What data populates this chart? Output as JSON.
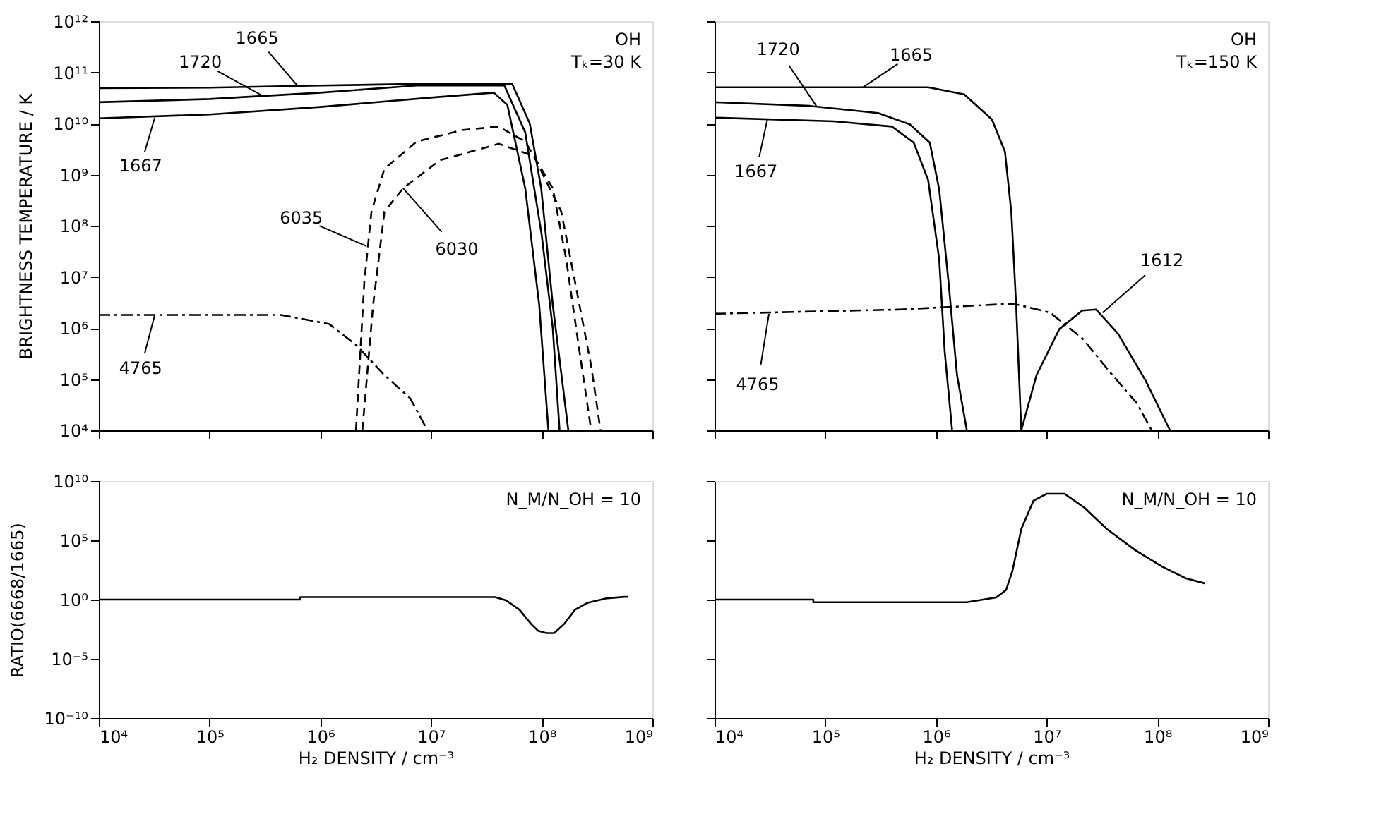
{
  "chart_data": [
    {
      "type": "line",
      "ylabel": "BRIGHTNESS TEMPERATURE / K",
      "log": "xy",
      "xlim": [
        10000.0,
        1000000000.0
      ],
      "ylim": [
        10000.0,
        1000000000000.0
      ],
      "xticks": [
        {
          "value": 10000.0,
          "label": null
        },
        {
          "value": 100000.0,
          "label": null
        },
        {
          "value": 1000000.0,
          "label": null
        },
        {
          "value": 10000000.0,
          "label": null
        },
        {
          "value": 100000000.0,
          "label": null
        },
        {
          "value": 1000000000.0,
          "label": null
        }
      ],
      "yticks": [
        {
          "value": 10000.0,
          "label": "10⁴"
        },
        {
          "value": 100000.0,
          "label": "10⁵"
        },
        {
          "value": 1000000.0,
          "label": "10⁶"
        },
        {
          "value": 10000000.0,
          "label": "10⁷"
        },
        {
          "value": 100000000.0,
          "label": "10⁸"
        },
        {
          "value": 1000000000.0,
          "label": "10⁹"
        },
        {
          "value": 10000000000.0,
          "label": "10¹⁰"
        },
        {
          "value": 100000000000.0,
          "label": "10¹¹"
        },
        {
          "value": 1000000000000.0,
          "label": "10¹²"
        }
      ],
      "tick_labels": "y",
      "grid": false,
      "series": [
        {
          "color": "#000000",
          "line_style": "solid",
          "x": [
            10000.0,
            100000.0,
            1000000.0,
            10000000.0,
            54000000.0,
            78000000.0,
            99000000.0,
            126000000.0,
            174000000.0
          ],
          "values": [
            49000000000.0,
            50000000000.0,
            55000000000.0,
            60000000000.0,
            60000000000.0,
            10000000000.0,
            540000000.0,
            2800000.0,
            10000.0
          ]
        },
        {
          "color": "#000000",
          "line_style": "solid",
          "x": [
            10000.0,
            100000.0,
            1000000.0,
            7400000.0,
            46000000.0,
            71000000.0,
            100000000.0,
            126000000.0,
            145000000.0
          ],
          "values": [
            26000000000.0,
            30000000000.0,
            40000000000.0,
            55000000000.0,
            55000000000.0,
            6700000000.0,
            66000000.0,
            980000.0,
            10000.0
          ]
        },
        {
          "color": "#000000",
          "line_style": "solid",
          "x": [
            10000.0,
            100000.0,
            1000000.0,
            10000000.0,
            37000000.0,
            49000000.0,
            71000000.0,
            95000000.0,
            115000000.0
          ],
          "values": [
            12600000000.0,
            15000000000.0,
            21000000000.0,
            32000000000.0,
            40000000000.0,
            23000000000.0,
            540000000.0,
            2800000.0,
            10000.0
          ]
        },
        {
          "color": "#000000",
          "line_style": "dashed",
          "x": [
            2100000.0,
            2500000.0,
            2900000.0,
            3800000.0,
            7400000.0,
            19000000.0,
            41000000.0,
            71000000.0,
            126000000.0,
            166000000.0,
            220000000.0,
            280000000.0
          ],
          "values": [
            10000.0,
            8000000.0,
            190000000.0,
            1300000000.0,
            4400000000.0,
            7400000000.0,
            8700000000.0,
            4400000000.0,
            540000000.0,
            23000000.0,
            340000.0,
            10000.0
          ]
        },
        {
          "color": "#000000",
          "line_style": "dashed",
          "x": [
            2400000.0,
            3000000.0,
            3800000.0,
            5600000.0,
            12000000.0,
            41000000.0,
            85000000.0,
            150000000.0,
            200000000.0,
            280000000.0,
            340000000.0
          ],
          "values": [
            10000.0,
            2800000.0,
            190000000.0,
            540000000.0,
            1900000000.0,
            4000000000.0,
            2300000000.0,
            190000000.0,
            8000000.0,
            180000.0,
            10000.0
          ]
        },
        {
          "color": "#000000",
          "line_style": "dashdot",
          "x": [
            10000.0,
            440000.0,
            1200000.0,
            2100000.0,
            3800000.0,
            6500000.0,
            9300000.0
          ],
          "values": [
            1800000.0,
            1800000.0,
            1200000.0,
            470000.0,
            120000.0,
            42000.0,
            10000.0
          ]
        }
      ],
      "annotations": [
        {
          "text": "1665",
          "x": 630000.0,
          "y": 53000000000.0
        },
        {
          "text": "1720",
          "x": 300000.0,
          "y": 35000000000.0
        },
        {
          "text": "1667",
          "x": 32000.0,
          "y": 13000000000.0
        },
        {
          "text": "6035",
          "x": 2600000.0,
          "y": 40000000.0
        },
        {
          "text": "6030",
          "x": 5600000.0,
          "y": 540000000.0
        },
        {
          "text": "4765",
          "x": 32000.0,
          "y": 1800000.0
        },
        "OH",
        "Tₖ=30 K"
      ]
    },
    {
      "type": "line",
      "log": "xy",
      "xlim": [
        10000.0,
        1000000000.0
      ],
      "ylim": [
        10000.0,
        1000000000000.0
      ],
      "xticks": [
        {
          "value": 10000.0,
          "label": null
        },
        {
          "value": 100000.0,
          "label": null
        },
        {
          "value": 1000000.0,
          "label": null
        },
        {
          "value": 10000000.0,
          "label": null
        },
        {
          "value": 100000000.0,
          "label": null
        },
        {
          "value": 1000000000.0,
          "label": null
        }
      ],
      "yticks": [
        {
          "value": 10000.0,
          "label": null
        },
        {
          "value": 100000.0,
          "label": null
        },
        {
          "value": 1000000.0,
          "label": null
        },
        {
          "value": 10000000.0,
          "label": null
        },
        {
          "value": 100000000.0,
          "label": null
        },
        {
          "value": 1000000000.0,
          "label": null
        },
        {
          "value": 10000000000.0,
          "label": null
        },
        {
          "value": 100000000000.0,
          "label": null
        },
        {
          "value": 1000000000000.0,
          "label": null
        }
      ],
      "tick_labels": false,
      "grid": false,
      "series": [
        {
          "color": "#000000",
          "line_style": "solid",
          "x": [
            10000.0,
            850000.0,
            1800000.0,
            3200000.0,
            4200000.0,
            4800000.0,
            5300000.0,
            5900000.0
          ],
          "values": [
            51000000000.0,
            51000000000.0,
            37000000000.0,
            12000000000.0,
            2800000000.0,
            180000000.0,
            2800000.0,
            10000.0
          ]
        },
        {
          "color": "#000000",
          "line_style": "solid",
          "x": [
            10000.0,
            73000.0,
            300000.0,
            580000.0,
            880000.0,
            1070000.0,
            1300000.0,
            1550000.0,
            1900000.0
          ],
          "values": [
            26000000000.0,
            22000000000.0,
            16000000000.0,
            9600000000.0,
            4200000000.0,
            510000000.0,
            7800000.0,
            120000.0,
            10000.0
          ]
        },
        {
          "color": "#000000",
          "line_style": "solid",
          "x": [
            10000.0,
            120000.0,
            400000.0,
            630000.0,
            850000.0,
            1070000.0,
            1200000.0,
            1400000.0
          ],
          "values": [
            13000000000.0,
            11000000000.0,
            8700000000.0,
            4200000000.0,
            780000000.0,
            22000000.0,
            340000.0,
            10000.0
          ]
        },
        {
          "color": "#000000",
          "line_style": "dashdot",
          "x": [
            10000.0,
            480000.0,
            5000000.0,
            10700000.0,
            21000000.0,
            37000000.0,
            65000000.0,
            89000000.0
          ],
          "values": [
            1900000.0,
            2300000.0,
            3000000.0,
            2000000.0,
            630000.0,
            140000.0,
            34000.0,
            10000.0
          ]
        },
        {
          "color": "#000000",
          "line_style": "solid",
          "x": [
            5900000.0,
            8100000.0,
            13000000.0,
            21000000.0,
            28000000.0,
            44000000.0,
            78000000.0,
            130000000.0
          ],
          "values": [
            10000.0,
            120000.0,
            950000.0,
            2200000.0,
            2300000.0,
            780000.0,
            95000.0,
            10000.0
          ]
        }
      ],
      "annotations": [
        {
          "text": "1720",
          "x": 83000.0,
          "y": 22000000000.0
        },
        {
          "text": "1665",
          "x": 220000.0,
          "y": 51000000000.0
        },
        {
          "text": "1667",
          "x": 30000.0,
          "y": 12000000000.0
        },
        {
          "text": "4765",
          "x": 31000.0,
          "y": 1900000.0
        },
        {
          "text": "1612",
          "x": 32000000.0,
          "y": 2000000.0
        },
        "OH",
        "Tₖ=150 K"
      ]
    },
    {
      "type": "line",
      "xlabel": "H₂ DENSITY / cm⁻³",
      "ylabel": "RATIO(6668/1665)",
      "log": "xy",
      "xlim": [
        10000.0,
        1000000000.0
      ],
      "ylim": [
        1e-10,
        10000000000.0
      ],
      "xticks": [
        {
          "value": 10000.0,
          "label": "10⁴"
        },
        {
          "value": 100000.0,
          "label": "10⁵"
        },
        {
          "value": 1000000.0,
          "label": "10⁶"
        },
        {
          "value": 10000000.0,
          "label": "10⁷"
        },
        {
          "value": 100000000.0,
          "label": "10⁸"
        },
        {
          "value": 1000000000.0,
          "label": "10⁹"
        }
      ],
      "yticks": [
        {
          "value": 1e-10,
          "label": "10⁻¹⁰"
        },
        {
          "value": 1e-05,
          "label": "10⁻⁵"
        },
        {
          "value": 1,
          "label": "10⁰"
        },
        {
          "value": 100000.0,
          "label": "10⁵"
        },
        {
          "value": 10000000000.0,
          "label": "10¹⁰"
        }
      ],
      "grid": false,
      "series": [
        {
          "color": "#000000",
          "line_style": "solid",
          "x": [
            10000.0,
            660000.0,
            660000.0,
            38000000.0,
            48000000.0,
            63000000.0,
            80000000.0,
            93000000.0,
            110000000.0,
            130000000.0,
            160000000.0,
            200000000.0,
            260000000.0,
            390000000.0,
            560000000.0,
            600000000.0
          ],
          "values": [
            1,
            1,
            1.6,
            1.6,
            0.83,
            0.14,
            0.009,
            0.0023,
            0.0015,
            0.0015,
            0.009,
            0.14,
            0.54,
            1.3,
            1.7,
            1.7
          ]
        }
      ],
      "annotations": [
        "N_M/N_OH = 10"
      ]
    },
    {
      "type": "line",
      "xlabel": "H₂ DENSITY / cm⁻³",
      "log": "xy",
      "xlim": [
        10000.0,
        1000000000.0
      ],
      "ylim": [
        1e-10,
        10000000000.0
      ],
      "xticks": [
        {
          "value": 10000.0,
          "label": "10⁴"
        },
        {
          "value": 100000.0,
          "label": "10⁵"
        },
        {
          "value": 1000000.0,
          "label": "10⁶"
        },
        {
          "value": 10000000.0,
          "label": "10⁷"
        },
        {
          "value": 100000000.0,
          "label": "10⁸"
        },
        {
          "value": 1000000000.0,
          "label": "10⁹"
        }
      ],
      "yticks": [
        {
          "value": 1e-10,
          "label": null
        },
        {
          "value": 1e-05,
          "label": null
        },
        {
          "value": 1,
          "label": null
        },
        {
          "value": 100000.0,
          "label": null
        },
        {
          "value": 10000000000.0,
          "label": null
        }
      ],
      "tick_labels": "x",
      "grid": false,
      "series": [
        {
          "color": "#000000",
          "line_style": "solid",
          "x": [
            10000.0,
            78000.0,
            78000.0,
            1900000.0,
            3500000.0,
            4300000.0,
            4900000.0,
            5900000.0,
            7600000.0,
            10000000.0,
            14500000.0,
            22000000.0,
            35000000.0,
            63000000.0,
            110000000.0,
            180000000.0,
            270000000.0
          ],
          "values": [
            1,
            1,
            0.6,
            0.6,
            1.5,
            6.5,
            250,
            900000.0,
            220000000.0,
            850000000.0,
            850000000.0,
            55000000.0,
            900000.0,
            15000.0,
            620,
            63,
            23
          ]
        }
      ],
      "annotations": [
        "N_M/N_OH = 10"
      ]
    }
  ]
}
